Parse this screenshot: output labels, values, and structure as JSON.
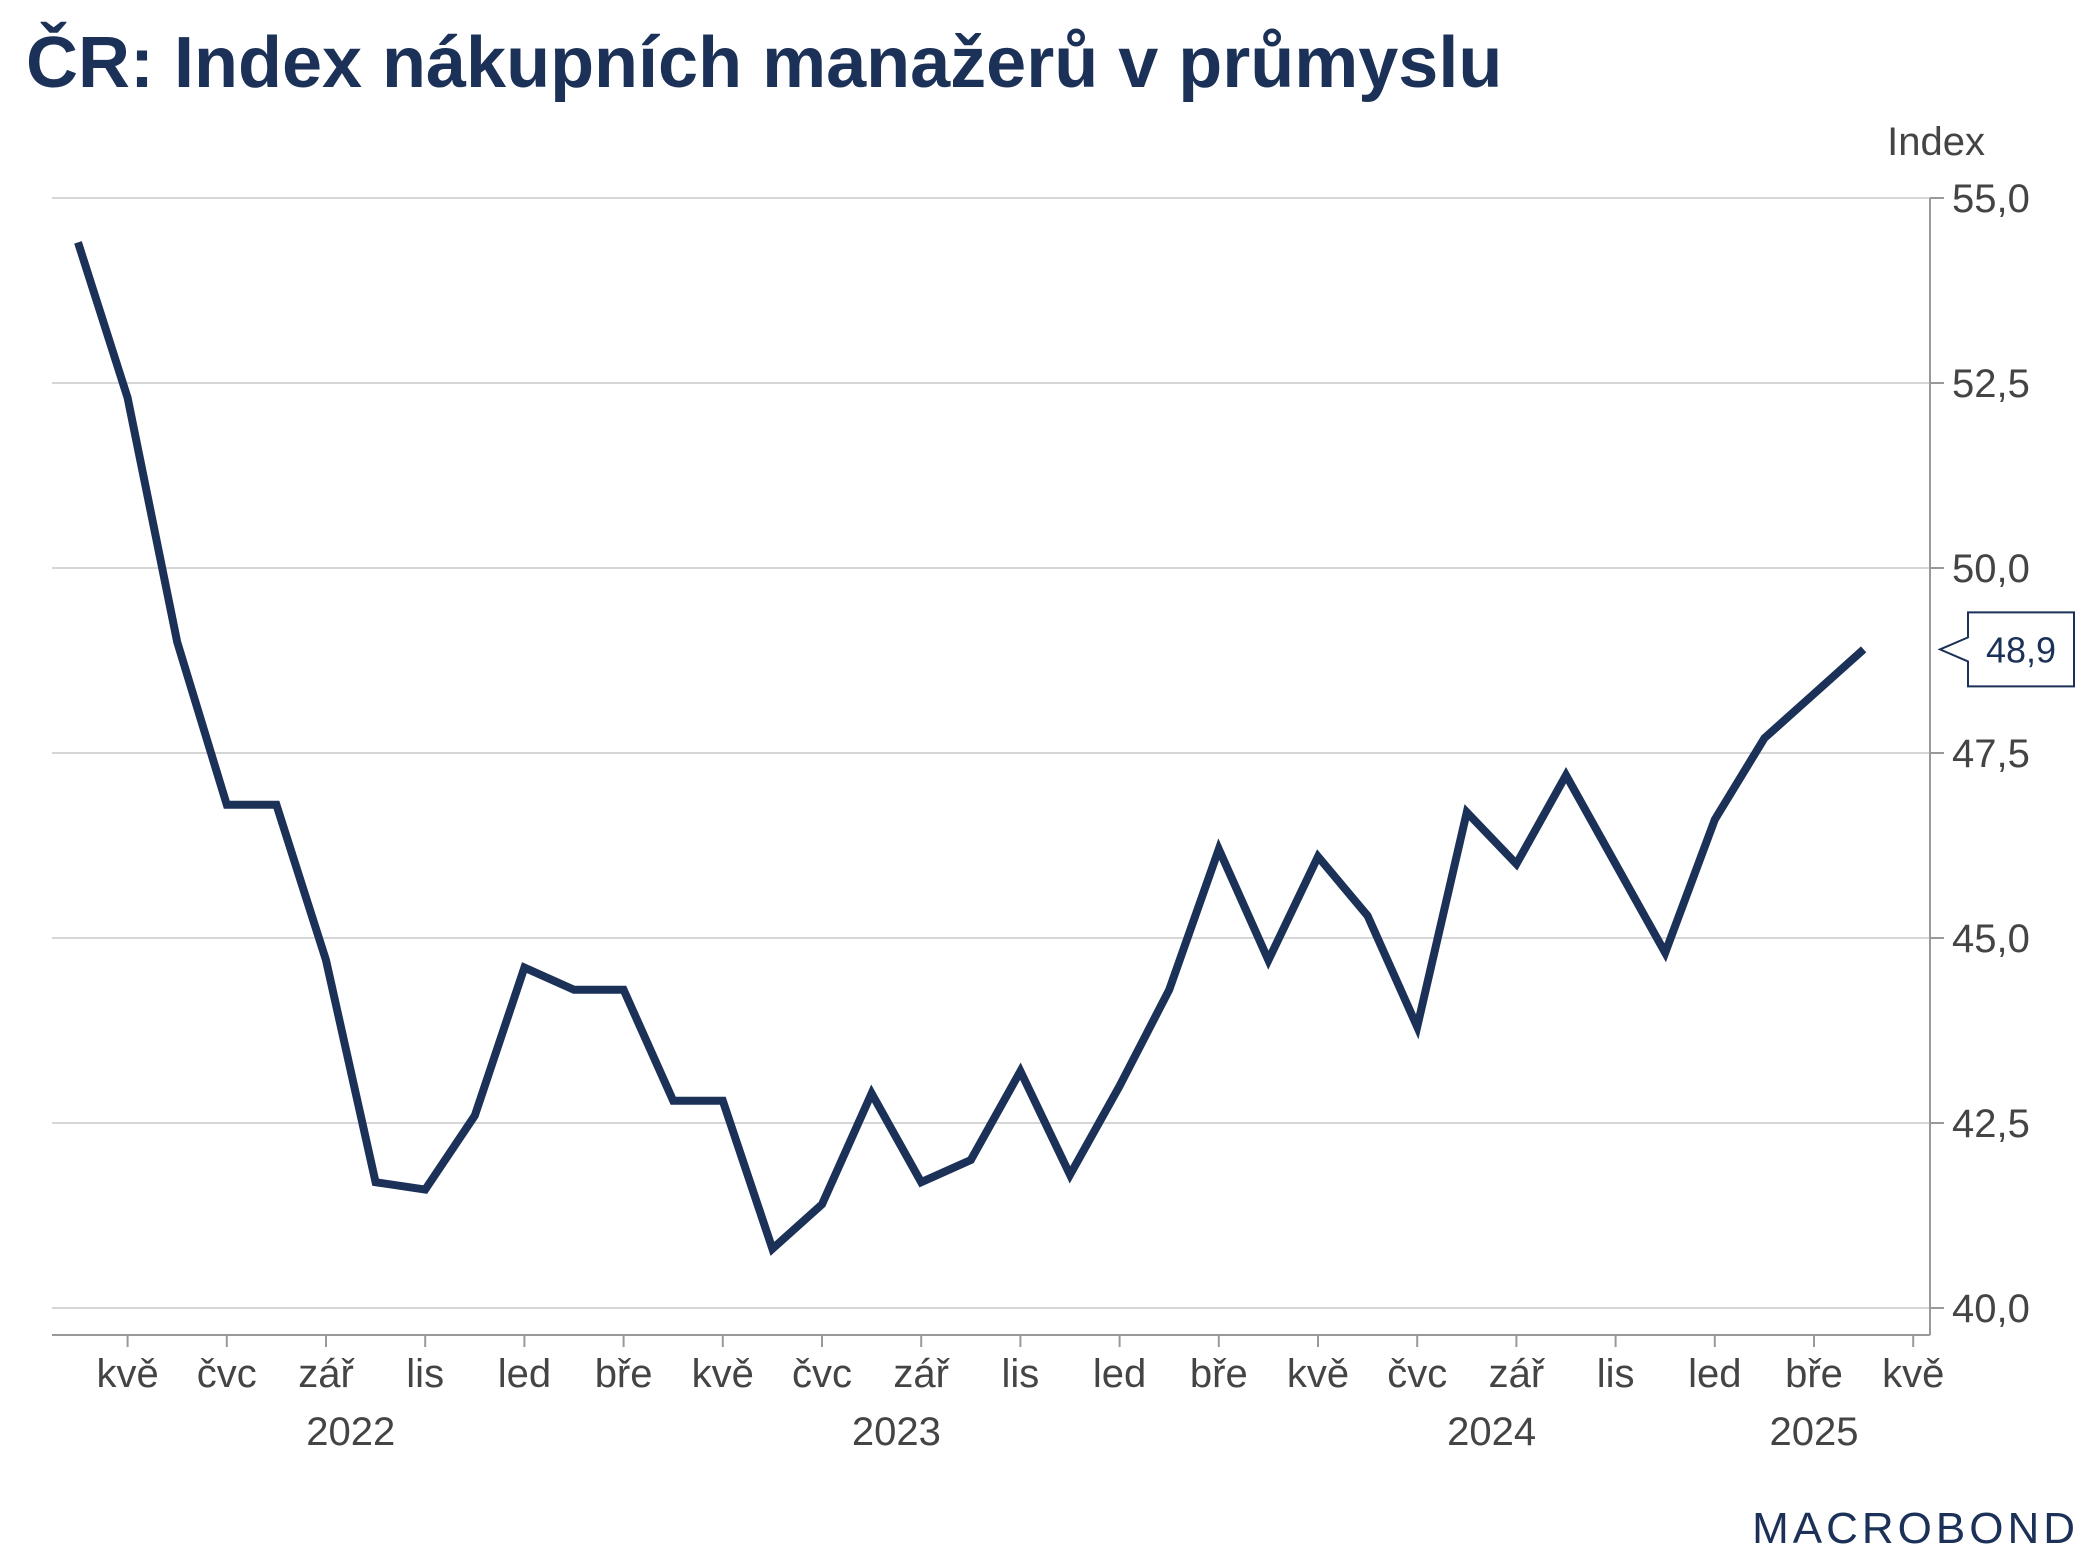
{
  "chart_data": {
    "type": "line",
    "title": "ČR: Index nákupních manažerů v průmyslu",
    "ylabel": "Index",
    "ylim": [
      39.6,
      55.0
    ],
    "yticks": [
      40.0,
      42.5,
      45.0,
      47.5,
      50.0,
      52.5,
      55.0
    ],
    "ytick_labels": [
      "40,0",
      "42,5",
      "45,0",
      "47,5",
      "50,0",
      "52,5",
      "55,0"
    ],
    "xtick_labels": [
      "kvě",
      "čvc",
      "zář",
      "lis",
      "led",
      "bře",
      "kvě",
      "čvc",
      "zář",
      "lis",
      "led",
      "bře",
      "kvě",
      "čvc",
      "zář",
      "lis",
      "led",
      "bře",
      "kvě"
    ],
    "year_labels": [
      "2022",
      "2023",
      "2024",
      "2025"
    ],
    "x": [
      "2022-04",
      "2022-05",
      "2022-06",
      "2022-07",
      "2022-08",
      "2022-09",
      "2022-10",
      "2022-11",
      "2022-12",
      "2023-01",
      "2023-02",
      "2023-03",
      "2023-04",
      "2023-05",
      "2023-06",
      "2023-07",
      "2023-08",
      "2023-09",
      "2023-10",
      "2023-11",
      "2023-12",
      "2024-01",
      "2024-02",
      "2024-03",
      "2024-04",
      "2024-05",
      "2024-06",
      "2024-07",
      "2024-08",
      "2024-09",
      "2024-10",
      "2024-11",
      "2024-12",
      "2025-01",
      "2025-02",
      "2025-03",
      "2025-04"
    ],
    "series": [
      {
        "values": [
          54.4,
          52.3,
          49.0,
          46.8,
          46.8,
          44.7,
          41.7,
          41.6,
          42.6,
          44.6,
          44.3,
          44.3,
          42.8,
          42.8,
          40.8,
          41.4,
          42.9,
          41.7,
          42.0,
          43.2,
          41.8,
          43.0,
          44.3,
          46.2,
          44.7,
          46.1,
          45.3,
          43.8,
          46.7,
          46.0,
          47.2,
          46.0,
          44.8,
          46.6,
          47.7,
          48.3,
          48.9
        ]
      }
    ],
    "last_value_label": "48,9",
    "line_color": "#1b3157",
    "grid": true,
    "y_axis_position": "right"
  },
  "branding": {
    "logo_text": "MACROBOND"
  }
}
